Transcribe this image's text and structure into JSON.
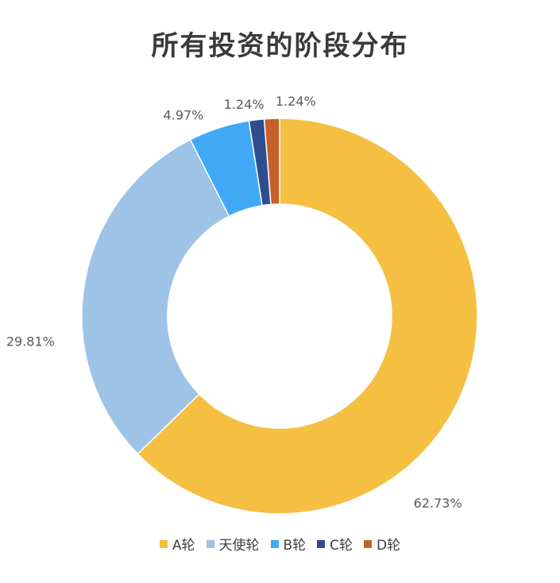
{
  "chart_data": {
    "type": "pie",
    "subtype": "donut",
    "title": "所有投资的阶段分布",
    "categories": [
      "A轮",
      "天使轮",
      "B轮",
      "C轮",
      "D轮"
    ],
    "values": [
      62.73,
      29.81,
      4.97,
      1.24,
      1.24
    ],
    "labels": [
      "62.73%",
      "29.81%",
      "4.97%",
      "1.24%",
      "1.24%"
    ],
    "colors": [
      "#F5BF42",
      "#9DC3E6",
      "#3FA9F5",
      "#2E4D8F",
      "#C8602A"
    ],
    "legend_position": "bottom"
  }
}
